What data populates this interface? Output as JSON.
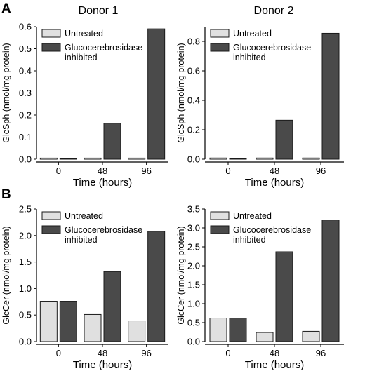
{
  "figure": {
    "panel_a_letter": "A",
    "panel_b_letter": "B",
    "column_titles": [
      "Donor 1",
      "Donor 2"
    ]
  },
  "colors": {
    "untreated": "#e0e0e0",
    "inhibited": "#4a4a4a",
    "edge": "#1a1a1a"
  },
  "chart_data": [
    {
      "type": "bar",
      "panel": "A",
      "donor": "Donor 1",
      "categories": [
        "0",
        "48",
        "96"
      ],
      "series": [
        {
          "name": "Untreated",
          "values": [
            0.005,
            0.005,
            0.005
          ]
        },
        {
          "name": "Glucocerebrosidase inhibited",
          "values": [
            0.002,
            0.163,
            0.59
          ]
        }
      ],
      "xlabel": "Time (hours)",
      "ylabel": "GlcSph (nmol/mg protein)",
      "ylim": [
        0,
        0.6
      ],
      "yticks": [
        "0.0",
        "0.1",
        "0.2",
        "0.3",
        "0.4",
        "0.5",
        "0.6"
      ],
      "legend": "top-left",
      "grid": false
    },
    {
      "type": "bar",
      "panel": "A",
      "donor": "Donor 2",
      "categories": [
        "0",
        "48",
        "96"
      ],
      "series": [
        {
          "name": "Untreated",
          "values": [
            0.008,
            0.008,
            0.008
          ]
        },
        {
          "name": "Glucocerebrosidase inhibited",
          "values": [
            0.002,
            0.265,
            0.855
          ]
        }
      ],
      "xlabel": "Time (hours)",
      "ylabel": "GlcSph (nmol/mg protein)",
      "ylim": [
        0,
        0.9
      ],
      "yticks": [
        "0.0",
        "0.2",
        "0.4",
        "0.6",
        "0.8"
      ],
      "legend": "top-left",
      "grid": false
    },
    {
      "type": "bar",
      "panel": "B",
      "donor": "Donor 1",
      "categories": [
        "0",
        "48",
        "96"
      ],
      "series": [
        {
          "name": "Untreated",
          "values": [
            0.76,
            0.51,
            0.39
          ]
        },
        {
          "name": "Glucocerebrosidase inhibited",
          "values": [
            0.76,
            1.32,
            2.08
          ]
        }
      ],
      "xlabel": "Time (hours)",
      "ylabel": "GlcCer (nmol/mg protein)",
      "ylim": [
        0,
        2.5
      ],
      "yticks": [
        "0.0",
        "0.5",
        "1.0",
        "1.5",
        "2.0",
        "2.5"
      ],
      "legend": "top-left",
      "grid": false
    },
    {
      "type": "bar",
      "panel": "B",
      "donor": "Donor 2",
      "categories": [
        "0",
        "48",
        "96"
      ],
      "series": [
        {
          "name": "Untreated",
          "values": [
            0.62,
            0.24,
            0.27
          ]
        },
        {
          "name": "Glucocerebrosidase inhibited",
          "values": [
            0.62,
            2.37,
            3.21
          ]
        }
      ],
      "xlabel": "Time (hours)",
      "ylabel": "GlcCer (nmol/mg protein)",
      "ylim": [
        0,
        3.5
      ],
      "yticks": [
        "0.0",
        "0.5",
        "1.0",
        "1.5",
        "2.0",
        "2.5",
        "3.0",
        "3.5"
      ],
      "legend": "top-left",
      "grid": false
    }
  ]
}
